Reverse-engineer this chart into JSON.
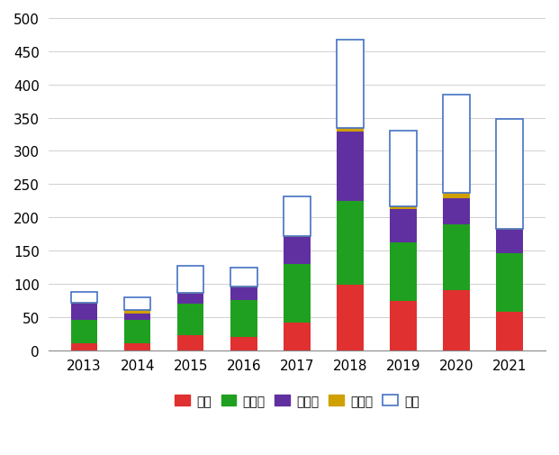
{
  "years": [
    "2013",
    "2014",
    "2015",
    "2016",
    "2017",
    "2018",
    "2019",
    "2020",
    "2021"
  ],
  "katei": [
    10,
    10,
    23,
    20,
    42,
    99,
    74,
    91,
    58
  ],
  "inshoku": [
    35,
    35,
    47,
    55,
    88,
    125,
    88,
    98,
    88
  ],
  "hanbai": [
    25,
    10,
    15,
    20,
    40,
    105,
    50,
    40,
    35
  ],
  "sonota": [
    1,
    5,
    1,
    1,
    2,
    5,
    5,
    8,
    1
  ],
  "fumei": [
    17,
    20,
    41,
    28,
    60,
    134,
    113,
    148,
    166
  ],
  "colors": {
    "katei": "#e03030",
    "inshoku": "#20a020",
    "hanbai": "#6030a0",
    "sonota": "#d0a000",
    "fumei_fill": "#ffffff",
    "fumei_edge": "#4472c4"
  },
  "ylim": [
    0,
    500
  ],
  "yticks": [
    0,
    50,
    100,
    150,
    200,
    250,
    300,
    350,
    400,
    450,
    500
  ],
  "legend_labels": [
    "家庭",
    "飲食店",
    "販売店",
    "その他",
    "不明"
  ],
  "grid_color": "#d0d0d0",
  "background_color": "#ffffff",
  "bar_width": 0.5,
  "figsize": [
    6.21,
    5.06
  ],
  "dpi": 100
}
